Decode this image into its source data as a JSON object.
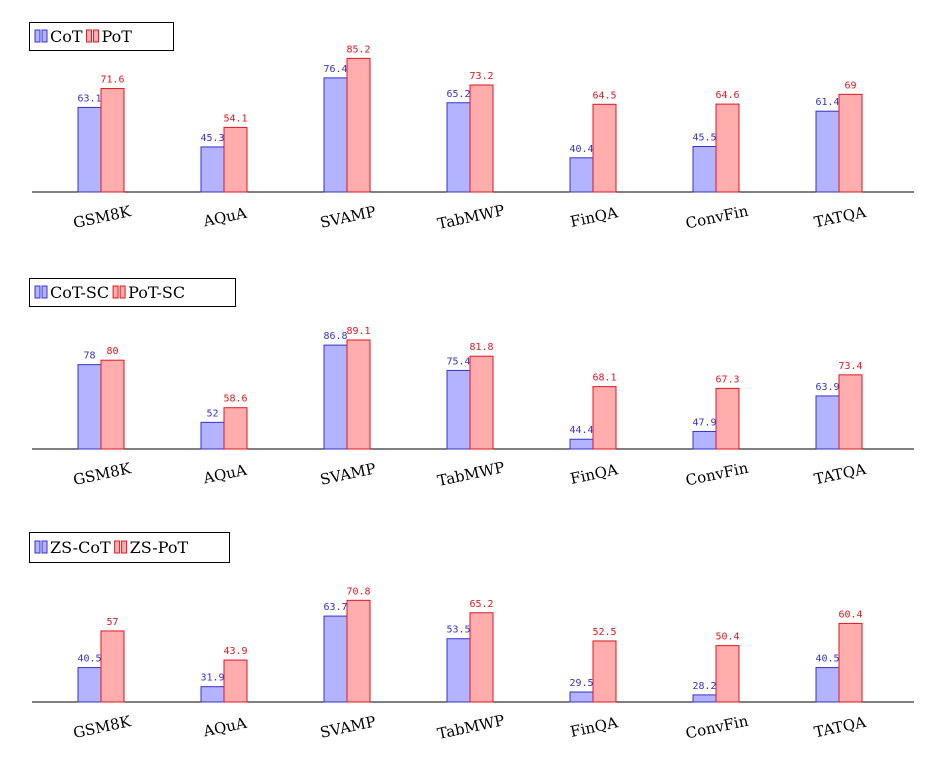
{
  "chart_data": [
    {
      "type": "bar",
      "categories": [
        "GSM8K",
        "AQuA",
        "SVAMP",
        "TabMWP",
        "FinQA",
        "ConvFin",
        "TATQA"
      ],
      "series": [
        {
          "name": "CoT",
          "values": [
            63.1,
            45.3,
            76.4,
            65.2,
            40.4,
            45.5,
            61.4
          ],
          "color": "#3333cc",
          "fill": "#b3b3ff"
        },
        {
          "name": "PoT",
          "values": [
            71.6,
            54.1,
            85.2,
            73.2,
            64.5,
            64.6,
            69
          ],
          "color": "#e0161f",
          "fill": "#ffadad"
        }
      ],
      "legend": "top-left",
      "grid": false,
      "baseline": 25
    },
    {
      "type": "bar",
      "categories": [
        "GSM8K",
        "AQuA",
        "SVAMP",
        "TabMWP",
        "FinQA",
        "ConvFin",
        "TATQA"
      ],
      "series": [
        {
          "name": "CoT-SC",
          "values": [
            78,
            52,
            86.8,
            75.4,
            44.4,
            47.9,
            63.9
          ],
          "color": "#3333cc",
          "fill": "#b3b3ff"
        },
        {
          "name": "PoT-SC",
          "values": [
            80,
            58.6,
            89.1,
            81.8,
            68.1,
            67.3,
            73.4
          ],
          "color": "#e0161f",
          "fill": "#ffadad"
        }
      ],
      "legend": "top-left",
      "grid": false,
      "baseline": 40
    },
    {
      "type": "bar",
      "categories": [
        "GSM8K",
        "AQuA",
        "SVAMP",
        "TabMWP",
        "FinQA",
        "ConvFin",
        "TATQA"
      ],
      "series": [
        {
          "name": "ZS-CoT",
          "values": [
            40.5,
            31.9,
            63.7,
            53.5,
            29.5,
            28.2,
            40.5
          ],
          "color": "#3333cc",
          "fill": "#b3b3ff"
        },
        {
          "name": "ZS-PoT",
          "values": [
            57,
            43.9,
            70.8,
            65.2,
            52.5,
            50.4,
            60.4
          ],
          "color": "#e0161f",
          "fill": "#ffadad"
        }
      ],
      "legend": "top-left",
      "grid": false,
      "baseline": 25
    }
  ]
}
